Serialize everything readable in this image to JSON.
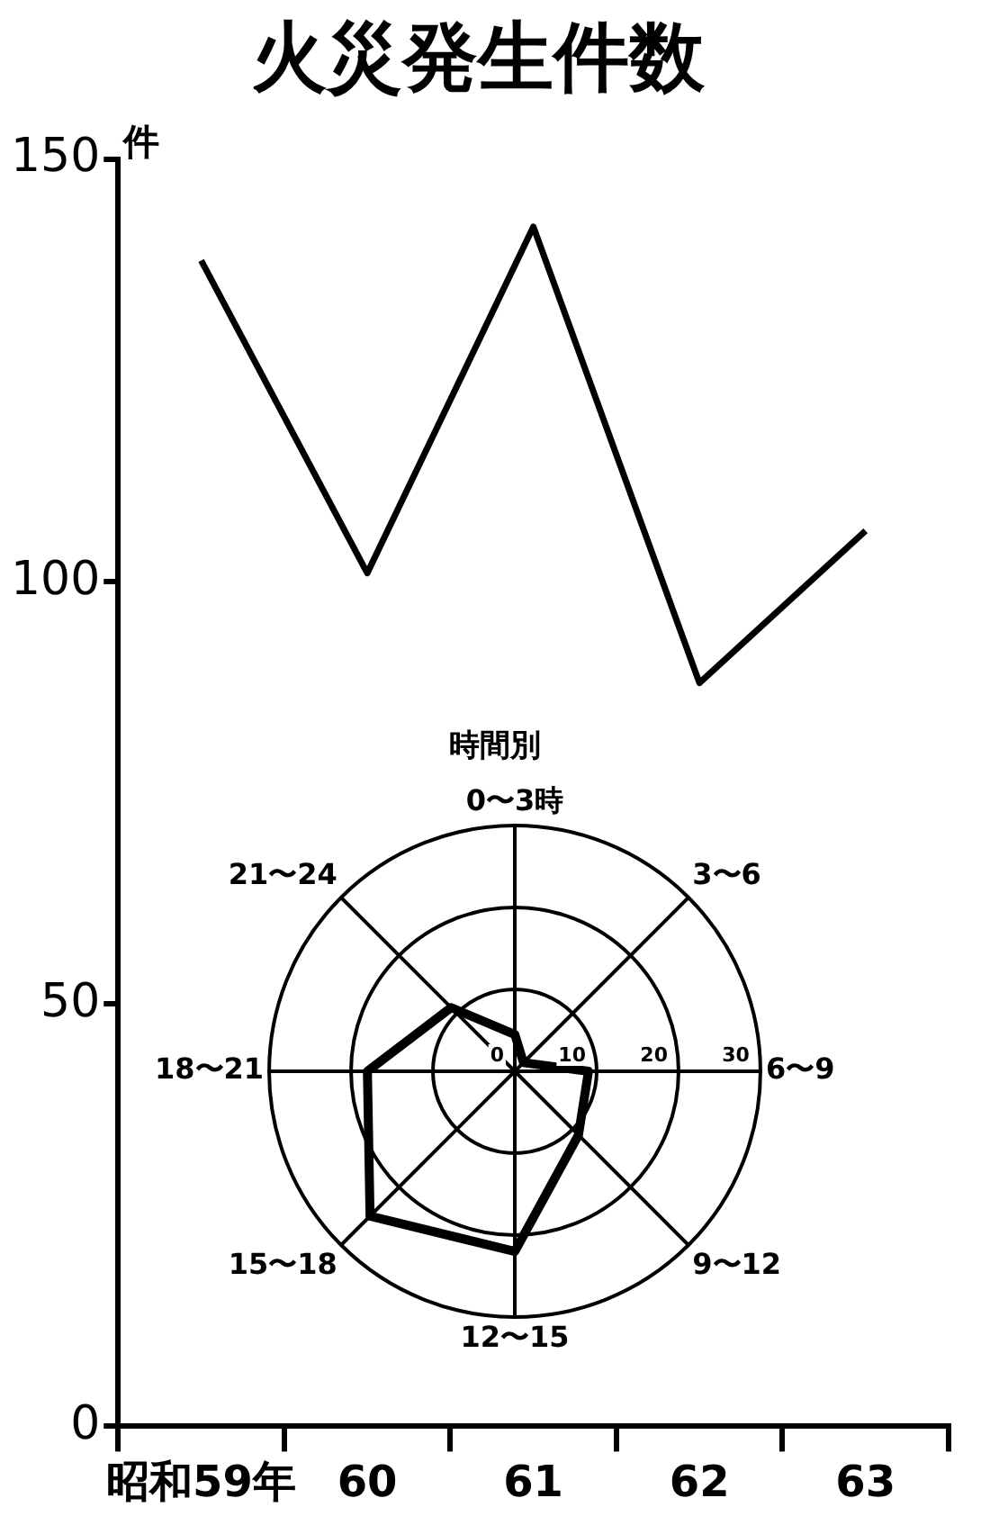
{
  "chart_data": [
    {
      "type": "line",
      "title": "火災発生件数",
      "ylabel": "件",
      "categories": [
        "昭和59年",
        "60",
        "61",
        "62",
        "63"
      ],
      "series": [
        {
          "color": "#000000",
          "values": [
            138,
            101,
            142,
            88,
            106
          ]
        }
      ],
      "ylim": [
        0,
        150
      ],
      "yticks": [
        0,
        50,
        100,
        150
      ],
      "grid": false,
      "legend": false,
      "marker": "none",
      "line_style": "solid"
    },
    {
      "type": "radar",
      "title": "時間別",
      "categories": [
        "0〜3時",
        "3〜6",
        "6〜9",
        "9〜12",
        "12〜15",
        "15〜18",
        "18〜21",
        "21〜24"
      ],
      "series": [
        {
          "color": "#000000",
          "values": [
            4.5,
            1.5,
            9,
            11,
            22,
            25,
            18,
            11
          ]
        }
      ],
      "ylim": [
        0,
        30
      ],
      "yticks": [
        0,
        10,
        20,
        30
      ],
      "grid": true,
      "legend": false,
      "marker": "none"
    }
  ]
}
